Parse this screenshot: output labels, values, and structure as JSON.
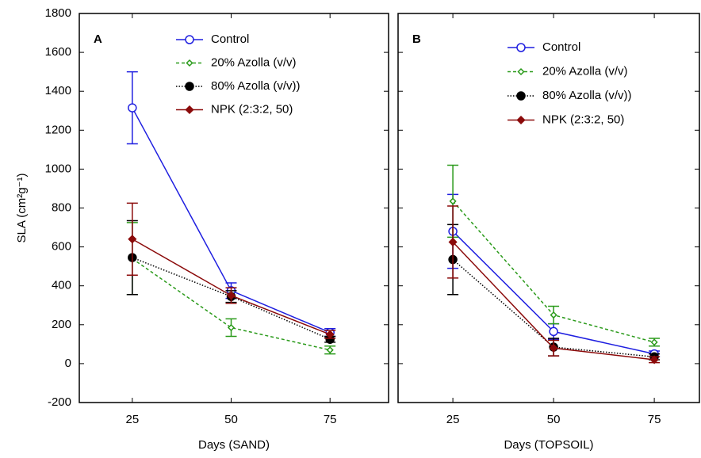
{
  "chart_data": [
    {
      "type": "line",
      "label": "A",
      "xlabel": "Days (SAND)",
      "ylabel": "SLA (cm²g⁻¹)",
      "x": [
        25,
        50,
        75
      ],
      "xlim": [
        11.6,
        89.8
      ],
      "xticks": [
        25,
        50,
        75
      ],
      "ylim": [
        -200,
        1800
      ],
      "yticks": [
        -200,
        0,
        200,
        400,
        600,
        800,
        1000,
        1200,
        1400,
        1600,
        1800
      ],
      "series": [
        {
          "name": "Control",
          "color": "#1f1fe0",
          "dash": "solid",
          "marker": "open-circle",
          "values": [
            1315,
            375,
            160
          ],
          "errors": [
            185,
            40,
            20
          ]
        },
        {
          "name": "20% Azolla (v/v)",
          "color": "#2a9a1a",
          "dash": "dashed",
          "marker": "open-diamond",
          "values": [
            540,
            185,
            70
          ],
          "errors": [
            185,
            45,
            20
          ]
        },
        {
          "name": "80% Azolla (v/v))",
          "color": "#000000",
          "dash": "dotted",
          "marker": "filled-circle",
          "values": [
            545,
            345,
            125
          ],
          "errors": [
            190,
            30,
            15
          ]
        },
        {
          "name": "NPK (2:3:2, 50)",
          "color": "#8b0a0a",
          "dash": "solid",
          "marker": "filled-diamond",
          "values": [
            640,
            350,
            150
          ],
          "errors": [
            185,
            40,
            20
          ]
        }
      ]
    },
    {
      "type": "line",
      "label": "B",
      "xlabel": "Days (TOPSOIL)",
      "x": [
        25,
        50,
        75
      ],
      "xlim": [
        11.4,
        86.2
      ],
      "xticks": [
        25,
        50,
        75
      ],
      "ylim": [
        -200,
        1800
      ],
      "yticks": [
        -200,
        0,
        200,
        400,
        600,
        800,
        1000,
        1200,
        1400,
        1600,
        1800
      ],
      "series": [
        {
          "name": "Control",
          "color": "#1f1fe0",
          "dash": "solid",
          "marker": "open-circle",
          "values": [
            680,
            165,
            50
          ],
          "errors": [
            190,
            40,
            15
          ]
        },
        {
          "name": "20% Azolla (v/v)",
          "color": "#2a9a1a",
          "dash": "dashed",
          "marker": "open-diamond",
          "values": [
            835,
            250,
            110
          ],
          "errors": [
            185,
            45,
            20
          ]
        },
        {
          "name": "80% Azolla (v/v))",
          "color": "#000000",
          "dash": "dotted",
          "marker": "filled-circle",
          "values": [
            535,
            85,
            35
          ],
          "errors": [
            180,
            45,
            15
          ]
        },
        {
          "name": "NPK (2:3:2, 50)",
          "color": "#8b0a0a",
          "dash": "solid",
          "marker": "filled-diamond",
          "values": [
            625,
            80,
            20
          ],
          "errors": [
            185,
            40,
            15
          ]
        }
      ]
    }
  ]
}
